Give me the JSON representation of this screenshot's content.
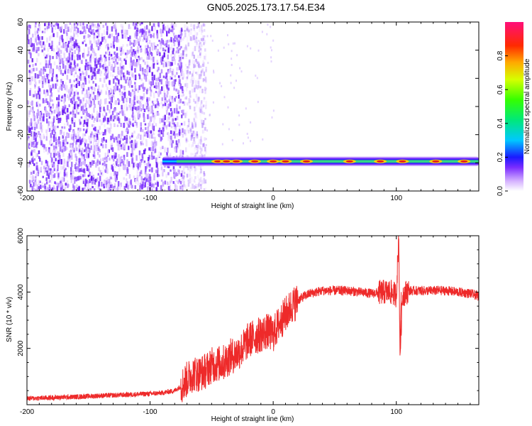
{
  "title": "GN05.2025.173.17.54.E34",
  "chart_data": [
    {
      "type": "heatmap",
      "title": "GN05.2025.173.17.54.E34",
      "xlabel": "Height of straight line (km)",
      "ylabel": "Frequency (Hz)",
      "xlim": [
        -200,
        167
      ],
      "ylim": [
        -60,
        60
      ],
      "x_ticks": [
        "-200",
        "-100",
        "0",
        "100"
      ],
      "y_ticks": [
        "-60",
        "-40",
        "-20",
        "0",
        "20",
        "40",
        "60"
      ],
      "colorbar": {
        "label": "Normalized spectral amplitude",
        "range": [
          0,
          1
        ],
        "ticks": [
          "0.0",
          "0.2",
          "0.4",
          "0.6",
          "0.8"
        ]
      },
      "noise_region_x": [
        -200,
        -62
      ],
      "signal_band": {
        "x_start": -90,
        "x_end": 167,
        "frequency_hz": -39,
        "peak_spots_x": [
          -45,
          -38,
          -30,
          -15,
          0,
          10,
          27,
          62,
          87,
          105,
          132,
          155
        ]
      }
    },
    {
      "type": "line",
      "xlabel": "Height of straight line (km)",
      "ylabel": "SNR (10 * v/v)",
      "xlim": [
        -200,
        167
      ],
      "ylim": [
        0,
        6000
      ],
      "x_ticks": [
        "-200",
        "-100",
        "0",
        "100"
      ],
      "y_ticks": [
        "2000",
        "4000",
        "6000"
      ],
      "color": "#ee2a2a",
      "series": [
        {
          "x": [
            -200,
            -180,
            -160,
            -140,
            -120,
            -100,
            -90,
            -80,
            -75,
            -70,
            -65,
            -60,
            -55,
            -50,
            -45,
            -40,
            -35,
            -30,
            -25,
            -20,
            -15,
            -10,
            -5,
            0,
            5,
            10,
            15,
            20,
            25,
            30,
            35,
            40,
            50,
            60,
            70,
            80,
            90,
            95,
            100,
            102,
            103,
            105,
            110,
            120,
            130,
            140,
            150,
            160,
            167
          ],
          "y": [
            220,
            250,
            280,
            320,
            350,
            390,
            420,
            500,
            650,
            900,
            1100,
            1100,
            1200,
            1400,
            1450,
            1500,
            1700,
            1800,
            2000,
            2300,
            2400,
            2500,
            2600,
            2500,
            2900,
            3200,
            3500,
            3700,
            3850,
            3950,
            4000,
            4050,
            4050,
            4050,
            4000,
            3950,
            4000,
            4000,
            3900,
            6000,
            1750,
            3900,
            4050,
            4050,
            4050,
            4050,
            4000,
            3950,
            3850
          ]
        }
      ]
    }
  ]
}
